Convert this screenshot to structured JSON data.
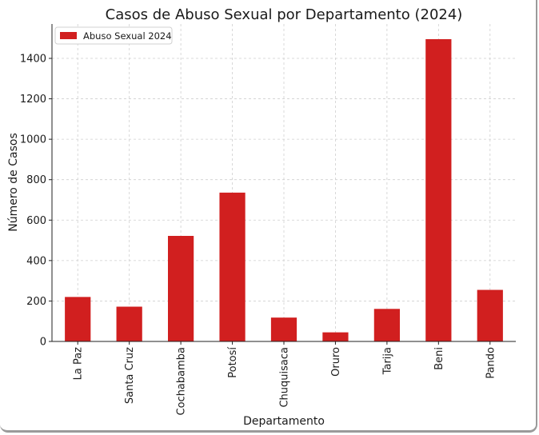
{
  "chart_data": {
    "type": "bar",
    "title": "Casos de Abuso Sexual por Departamento (2024)",
    "xlabel": "Departamento",
    "ylabel": "Número de Casos",
    "categories": [
      "La Paz",
      "Santa Cruz",
      "Cochabamba",
      "Potosí",
      "Chuquisaca",
      "Oruro",
      "Tarija",
      "Beni",
      "Pando"
    ],
    "series": [
      {
        "name": "Abuso Sexual 2024",
        "color": "#d11f1f",
        "values": [
          220,
          172,
          522,
          736,
          118,
          45,
          161,
          1495,
          255
        ]
      }
    ],
    "ylim": [
      0,
      1570
    ],
    "yticks": [
      0,
      200,
      400,
      600,
      800,
      1000,
      1200,
      1400
    ],
    "grid": true,
    "legend_position": "top-left"
  }
}
